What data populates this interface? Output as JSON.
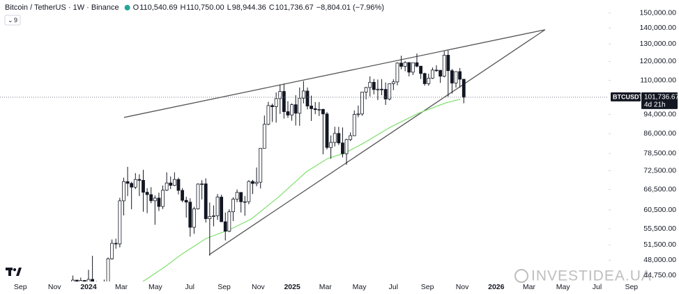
{
  "chart_data": {
    "type": "candlestick",
    "title": "Bitcoin / TetherUS · 1W · Binance",
    "legend": [
      {
        "key": "O",
        "value": "110,540.69"
      },
      {
        "key": "H",
        "value": "110,750.00"
      },
      {
        "key": "L",
        "value": "98,944.36"
      },
      {
        "key": "C",
        "value": "101,736.67"
      }
    ],
    "change": "−8,804.01 (−7.96%)",
    "indicator_count": "9",
    "log_scale": true,
    "grid": false,
    "up_color": "#ffffff",
    "down_color": "#131722",
    "ylim": [
      43500,
      159300
    ],
    "yticks": [
      {
        "value": 150000,
        "label": "150,000.00"
      },
      {
        "value": 140000,
        "label": "140,000.00"
      },
      {
        "value": 130000,
        "label": "130,000.00"
      },
      {
        "value": 120000,
        "label": "120,000.00"
      },
      {
        "value": 110000,
        "label": "110,000.00"
      },
      {
        "value": 94000,
        "label": "94,000.00"
      },
      {
        "value": 86000,
        "label": "86,000.00"
      },
      {
        "value": 78500,
        "label": "78,500.00"
      },
      {
        "value": 72500,
        "label": "72,500.00"
      },
      {
        "value": 66500,
        "label": "66,500.00"
      },
      {
        "value": 60500,
        "label": "60,500.00"
      },
      {
        "value": 55500,
        "label": "55,500.00"
      },
      {
        "value": 51500,
        "label": "51,500.00"
      },
      {
        "value": 48000,
        "label": "48,000.00"
      },
      {
        "value": 44750,
        "label": "44,750.00"
      }
    ],
    "xlim": [
      -5.65,
      168.06
    ],
    "xticks": [
      {
        "value": -0.43,
        "label": "Sep"
      },
      {
        "value": 8.3,
        "label": "Nov"
      },
      {
        "value": 17.0,
        "label": "2024"
      },
      {
        "value": 25.4,
        "label": "Mar"
      },
      {
        "value": 34.1,
        "label": "May"
      },
      {
        "value": 42.9,
        "label": "Jul"
      },
      {
        "value": 51.7,
        "label": "Sep"
      },
      {
        "value": 60.4,
        "label": "Nov"
      },
      {
        "value": 69.1,
        "label": "2025"
      },
      {
        "value": 77.6,
        "label": "Mar"
      },
      {
        "value": 86.3,
        "label": "May"
      },
      {
        "value": 95.0,
        "label": "Jul"
      },
      {
        "value": 103.7,
        "label": "Sep"
      },
      {
        "value": 112.6,
        "label": "Nov"
      },
      {
        "value": 121.3,
        "label": "2026"
      },
      {
        "value": 129.7,
        "label": "Mar"
      },
      {
        "value": 138.4,
        "label": "May"
      },
      {
        "value": 147.1,
        "label": "Jul"
      },
      {
        "value": 155.9,
        "label": "Sep"
      }
    ],
    "x": [
      13,
      14,
      15,
      16,
      17,
      18,
      19,
      20,
      21,
      22,
      23,
      24,
      25,
      26,
      27,
      28,
      29,
      30,
      31,
      32,
      33,
      34,
      35,
      36,
      37,
      38,
      39,
      40,
      41,
      42,
      43,
      44,
      45,
      46,
      47,
      48,
      49,
      50,
      51,
      52,
      53,
      54,
      55,
      56,
      57,
      58,
      59,
      60,
      61,
      62,
      63,
      64,
      65,
      66,
      67,
      68,
      69,
      70,
      71,
      72,
      73,
      74,
      75,
      76,
      77,
      78,
      79,
      80,
      81,
      82,
      83,
      84,
      85,
      86,
      87,
      88,
      89,
      90,
      91,
      92,
      93,
      94,
      95,
      96,
      97,
      98,
      99,
      100,
      101,
      102,
      103,
      104,
      105,
      106,
      107,
      108,
      109,
      110,
      111,
      112,
      113
    ],
    "candles": [
      [
        39970,
        44700,
        39970,
        43780
      ],
      [
        43780,
        43800,
        40500,
        41370
      ],
      [
        41370,
        44290,
        40600,
        43700
      ],
      [
        43700,
        43800,
        41500,
        42280
      ],
      [
        42280,
        45900,
        40750,
        43930
      ],
      [
        43930,
        48970,
        41500,
        41730
      ],
      [
        41730,
        43580,
        40600,
        41580
      ],
      [
        41580,
        42250,
        38500,
        42030
      ],
      [
        42030,
        43880,
        41880,
        42580
      ],
      [
        42580,
        48600,
        42250,
        48300
      ],
      [
        48300,
        52800,
        48100,
        51880
      ],
      [
        51880,
        52990,
        50600,
        51730
      ],
      [
        51730,
        64000,
        50900,
        63110
      ],
      [
        63110,
        70200,
        59000,
        68960
      ],
      [
        68960,
        73800,
        64500,
        68390
      ],
      [
        68390,
        68900,
        60700,
        67210
      ],
      [
        67210,
        71700,
        66600,
        69640
      ],
      [
        69640,
        71300,
        64500,
        69360
      ],
      [
        69360,
        72800,
        60000,
        65640
      ],
      [
        65640,
        66900,
        59600,
        64940
      ],
      [
        64940,
        67200,
        62400,
        63120
      ],
      [
        63120,
        64700,
        56500,
        63910
      ],
      [
        63910,
        65500,
        60200,
        61480
      ],
      [
        61480,
        67700,
        60750,
        66270
      ],
      [
        66270,
        71950,
        66000,
        68520
      ],
      [
        68520,
        70600,
        66600,
        67760
      ],
      [
        67760,
        71950,
        67500,
        69640
      ],
      [
        69640,
        70200,
        65000,
        66210
      ],
      [
        66210,
        66900,
        62700,
        63250
      ],
      [
        63250,
        64300,
        58400,
        62730
      ],
      [
        62730,
        63850,
        53500,
        55850
      ],
      [
        55850,
        61400,
        54200,
        60800
      ],
      [
        60800,
        68400,
        60600,
        68160
      ],
      [
        68160,
        69400,
        63500,
        68250
      ],
      [
        68250,
        70000,
        57100,
        58100
      ],
      [
        58100,
        62600,
        49000,
        58700
      ],
      [
        58700,
        61800,
        56100,
        58900
      ],
      [
        58900,
        65100,
        57800,
        64200
      ],
      [
        64200,
        64900,
        57200,
        57300
      ],
      [
        57300,
        59800,
        52550,
        54840
      ],
      [
        54840,
        60700,
        54600,
        60000
      ],
      [
        60000,
        64130,
        57500,
        63580
      ],
      [
        63580,
        66500,
        62700,
        65600
      ],
      [
        65600,
        65600,
        59800,
        62820
      ],
      [
        62820,
        64500,
        58900,
        62850
      ],
      [
        62850,
        69400,
        62100,
        69000
      ],
      [
        69000,
        69500,
        65100,
        68360
      ],
      [
        68360,
        73600,
        67500,
        68760
      ],
      [
        68760,
        80500,
        66800,
        80400
      ],
      [
        80400,
        93500,
        80400,
        89800
      ],
      [
        89800,
        99600,
        89400,
        97900
      ],
      [
        97900,
        98800,
        90800,
        97400
      ],
      [
        97400,
        104000,
        90500,
        101100
      ],
      [
        101100,
        107800,
        94200,
        104500
      ],
      [
        104500,
        108300,
        92200,
        95200
      ],
      [
        95200,
        99900,
        92500,
        93700
      ],
      [
        93700,
        98900,
        91300,
        98300
      ],
      [
        98300,
        102700,
        89300,
        94500
      ],
      [
        94500,
        106400,
        89200,
        101300
      ],
      [
        101300,
        109600,
        98900,
        104700
      ],
      [
        104700,
        106400,
        96200,
        97700
      ],
      [
        97700,
        102500,
        91200,
        96500
      ],
      [
        96500,
        99500,
        94100,
        96100
      ],
      [
        96100,
        99500,
        93300,
        96200
      ],
      [
        96200,
        96500,
        78200,
        94200
      ],
      [
        94200,
        95000,
        80000,
        80700
      ],
      [
        80700,
        85300,
        76600,
        82600
      ],
      [
        82600,
        88800,
        81100,
        86100
      ],
      [
        86100,
        88750,
        81600,
        82400
      ],
      [
        82400,
        88500,
        77100,
        78400
      ],
      [
        78400,
        84000,
        74500,
        83700
      ],
      [
        83700,
        86500,
        83100,
        85200
      ],
      [
        85200,
        95700,
        85100,
        94000
      ],
      [
        94000,
        97900,
        92800,
        94200
      ],
      [
        94200,
        104300,
        93400,
        104200
      ],
      [
        104200,
        106700,
        100700,
        106400
      ],
      [
        106400,
        112000,
        102100,
        109000
      ],
      [
        109000,
        110700,
        103100,
        105400
      ],
      [
        105400,
        110400,
        100400,
        105600
      ],
      [
        105600,
        110600,
        102700,
        105500
      ],
      [
        105500,
        108900,
        98200,
        100900
      ],
      [
        100900,
        108500,
        100300,
        108300
      ],
      [
        108300,
        110500,
        105100,
        109200
      ],
      [
        109200,
        119500,
        107500,
        119100
      ],
      [
        119100,
        123200,
        115700,
        117300
      ],
      [
        117300,
        120200,
        114700,
        119400
      ],
      [
        119400,
        119500,
        112000,
        114200
      ],
      [
        114200,
        119300,
        112700,
        119300
      ],
      [
        119300,
        124500,
        116800,
        117400
      ],
      [
        117400,
        117600,
        110700,
        113500
      ],
      [
        113500,
        113900,
        107300,
        108300
      ],
      [
        108300,
        113400,
        107300,
        111100
      ],
      [
        111100,
        116700,
        110700,
        115300
      ],
      [
        115300,
        117900,
        114400,
        115200
      ],
      [
        115200,
        115400,
        108700,
        112100
      ],
      [
        112100,
        125700,
        111500,
        123500
      ],
      [
        123500,
        126200,
        102000,
        115000
      ],
      [
        115000,
        115900,
        103500,
        108600
      ],
      [
        108600,
        114000,
        106300,
        114500
      ],
      [
        114500,
        116400,
        106300,
        110540.69
      ],
      [
        110540.69,
        110750,
        98944.36,
        101736.67
      ]
    ],
    "ma": {
      "color": "#7ee06a",
      "x": [
        30.9,
        36.3,
        41.1,
        47.0,
        53.2,
        58.6,
        65.7,
        72.8,
        78.2,
        82.6,
        87.1,
        94.2,
        101.4,
        108.5,
        112.1
      ],
      "values": [
        43500,
        46400,
        49500,
        53000,
        55300,
        58000,
        64300,
        72200,
        76700,
        78700,
        82100,
        88600,
        94500,
        99200,
        100800
      ]
    },
    "trendlines": [
      {
        "color": "#555555",
        "x": [
          26.1,
          133.8
        ],
        "values": [
          92700,
          138900
        ]
      },
      {
        "color": "#555555",
        "x": [
          47.85,
          133.8
        ],
        "values": [
          49200,
          138900
        ]
      }
    ],
    "last_price": {
      "symbol": "BTCUSDT",
      "price": "101,736.67",
      "countdown": "4d 21h"
    },
    "watermark": "INVESTIDEA.UA"
  }
}
